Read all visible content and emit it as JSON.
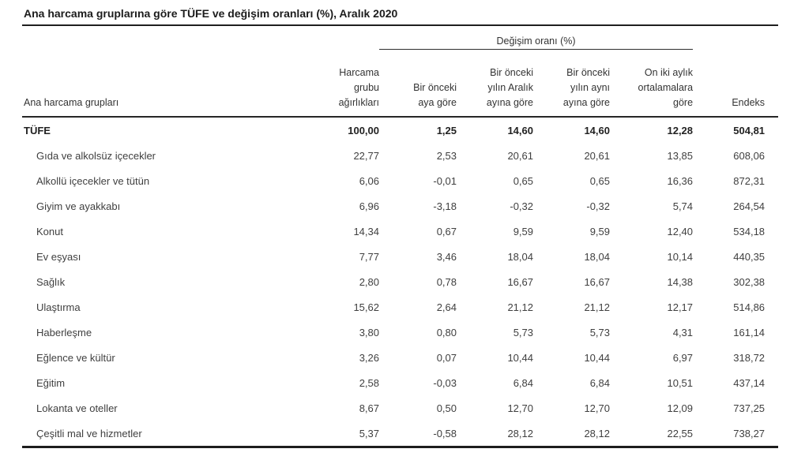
{
  "title": "Ana harcama gruplarına göre TÜFE ve değişim oranları (%), Aralık 2020",
  "colors": {
    "text": "#3f3f3f",
    "title_text": "#1c1c1c",
    "rule_lines": "#1f1f1f"
  },
  "table": {
    "group_header": "Değişim oranı (%)",
    "columns": {
      "name": "Ana harcama grupları",
      "weight": "Harcama\ngrubu\nağırlıkları",
      "prev_month": "Bir önceki\naya göre",
      "prev_december": "Bir önceki\nyılın Aralık\nayına göre",
      "prev_year_same_month": "Bir önceki\nyılın aynı\nayına göre",
      "twelve_month_avg": "On iki aylık\nortalamalara\ngöre",
      "index": "Endeks"
    },
    "rows": [
      {
        "name": "TÜFE",
        "weight": "100,00",
        "prev_month": "1,25",
        "prev_december": "14,60",
        "prev_year_same_month": "14,60",
        "twelve_month_avg": "12,28",
        "index": "504,81"
      },
      {
        "name": "Gıda ve alkolsüz içecekler",
        "weight": "22,77",
        "prev_month": "2,53",
        "prev_december": "20,61",
        "prev_year_same_month": "20,61",
        "twelve_month_avg": "13,85",
        "index": "608,06"
      },
      {
        "name": "Alkollü içecekler ve tütün",
        "weight": "6,06",
        "prev_month": "-0,01",
        "prev_december": "0,65",
        "prev_year_same_month": "0,65",
        "twelve_month_avg": "16,36",
        "index": "872,31"
      },
      {
        "name": "Giyim ve ayakkabı",
        "weight": "6,96",
        "prev_month": "-3,18",
        "prev_december": "-0,32",
        "prev_year_same_month": "-0,32",
        "twelve_month_avg": "5,74",
        "index": "264,54"
      },
      {
        "name": "Konut",
        "weight": "14,34",
        "prev_month": "0,67",
        "prev_december": "9,59",
        "prev_year_same_month": "9,59",
        "twelve_month_avg": "12,40",
        "index": "534,18"
      },
      {
        "name": "Ev eşyası",
        "weight": "7,77",
        "prev_month": "3,46",
        "prev_december": "18,04",
        "prev_year_same_month": "18,04",
        "twelve_month_avg": "10,14",
        "index": "440,35"
      },
      {
        "name": "Sağlık",
        "weight": "2,80",
        "prev_month": "0,78",
        "prev_december": "16,67",
        "prev_year_same_month": "16,67",
        "twelve_month_avg": "14,38",
        "index": "302,38"
      },
      {
        "name": "Ulaştırma",
        "weight": "15,62",
        "prev_month": "2,64",
        "prev_december": "21,12",
        "prev_year_same_month": "21,12",
        "twelve_month_avg": "12,17",
        "index": "514,86"
      },
      {
        "name": "Haberleşme",
        "weight": "3,80",
        "prev_month": "0,80",
        "prev_december": "5,73",
        "prev_year_same_month": "5,73",
        "twelve_month_avg": "4,31",
        "index": "161,14"
      },
      {
        "name": "Eğlence ve kültür",
        "weight": "3,26",
        "prev_month": "0,07",
        "prev_december": "10,44",
        "prev_year_same_month": "10,44",
        "twelve_month_avg": "6,97",
        "index": "318,72"
      },
      {
        "name": "Eğitim",
        "weight": "2,58",
        "prev_month": "-0,03",
        "prev_december": "6,84",
        "prev_year_same_month": "6,84",
        "twelve_month_avg": "10,51",
        "index": "437,14"
      },
      {
        "name": "Lokanta ve oteller",
        "weight": "8,67",
        "prev_month": "0,50",
        "prev_december": "12,70",
        "prev_year_same_month": "12,70",
        "twelve_month_avg": "12,09",
        "index": "737,25"
      },
      {
        "name": "Çeşitli mal ve hizmetler",
        "weight": "5,37",
        "prev_month": "-0,58",
        "prev_december": "28,12",
        "prev_year_same_month": "28,12",
        "twelve_month_avg": "22,55",
        "index": "738,27"
      }
    ]
  }
}
